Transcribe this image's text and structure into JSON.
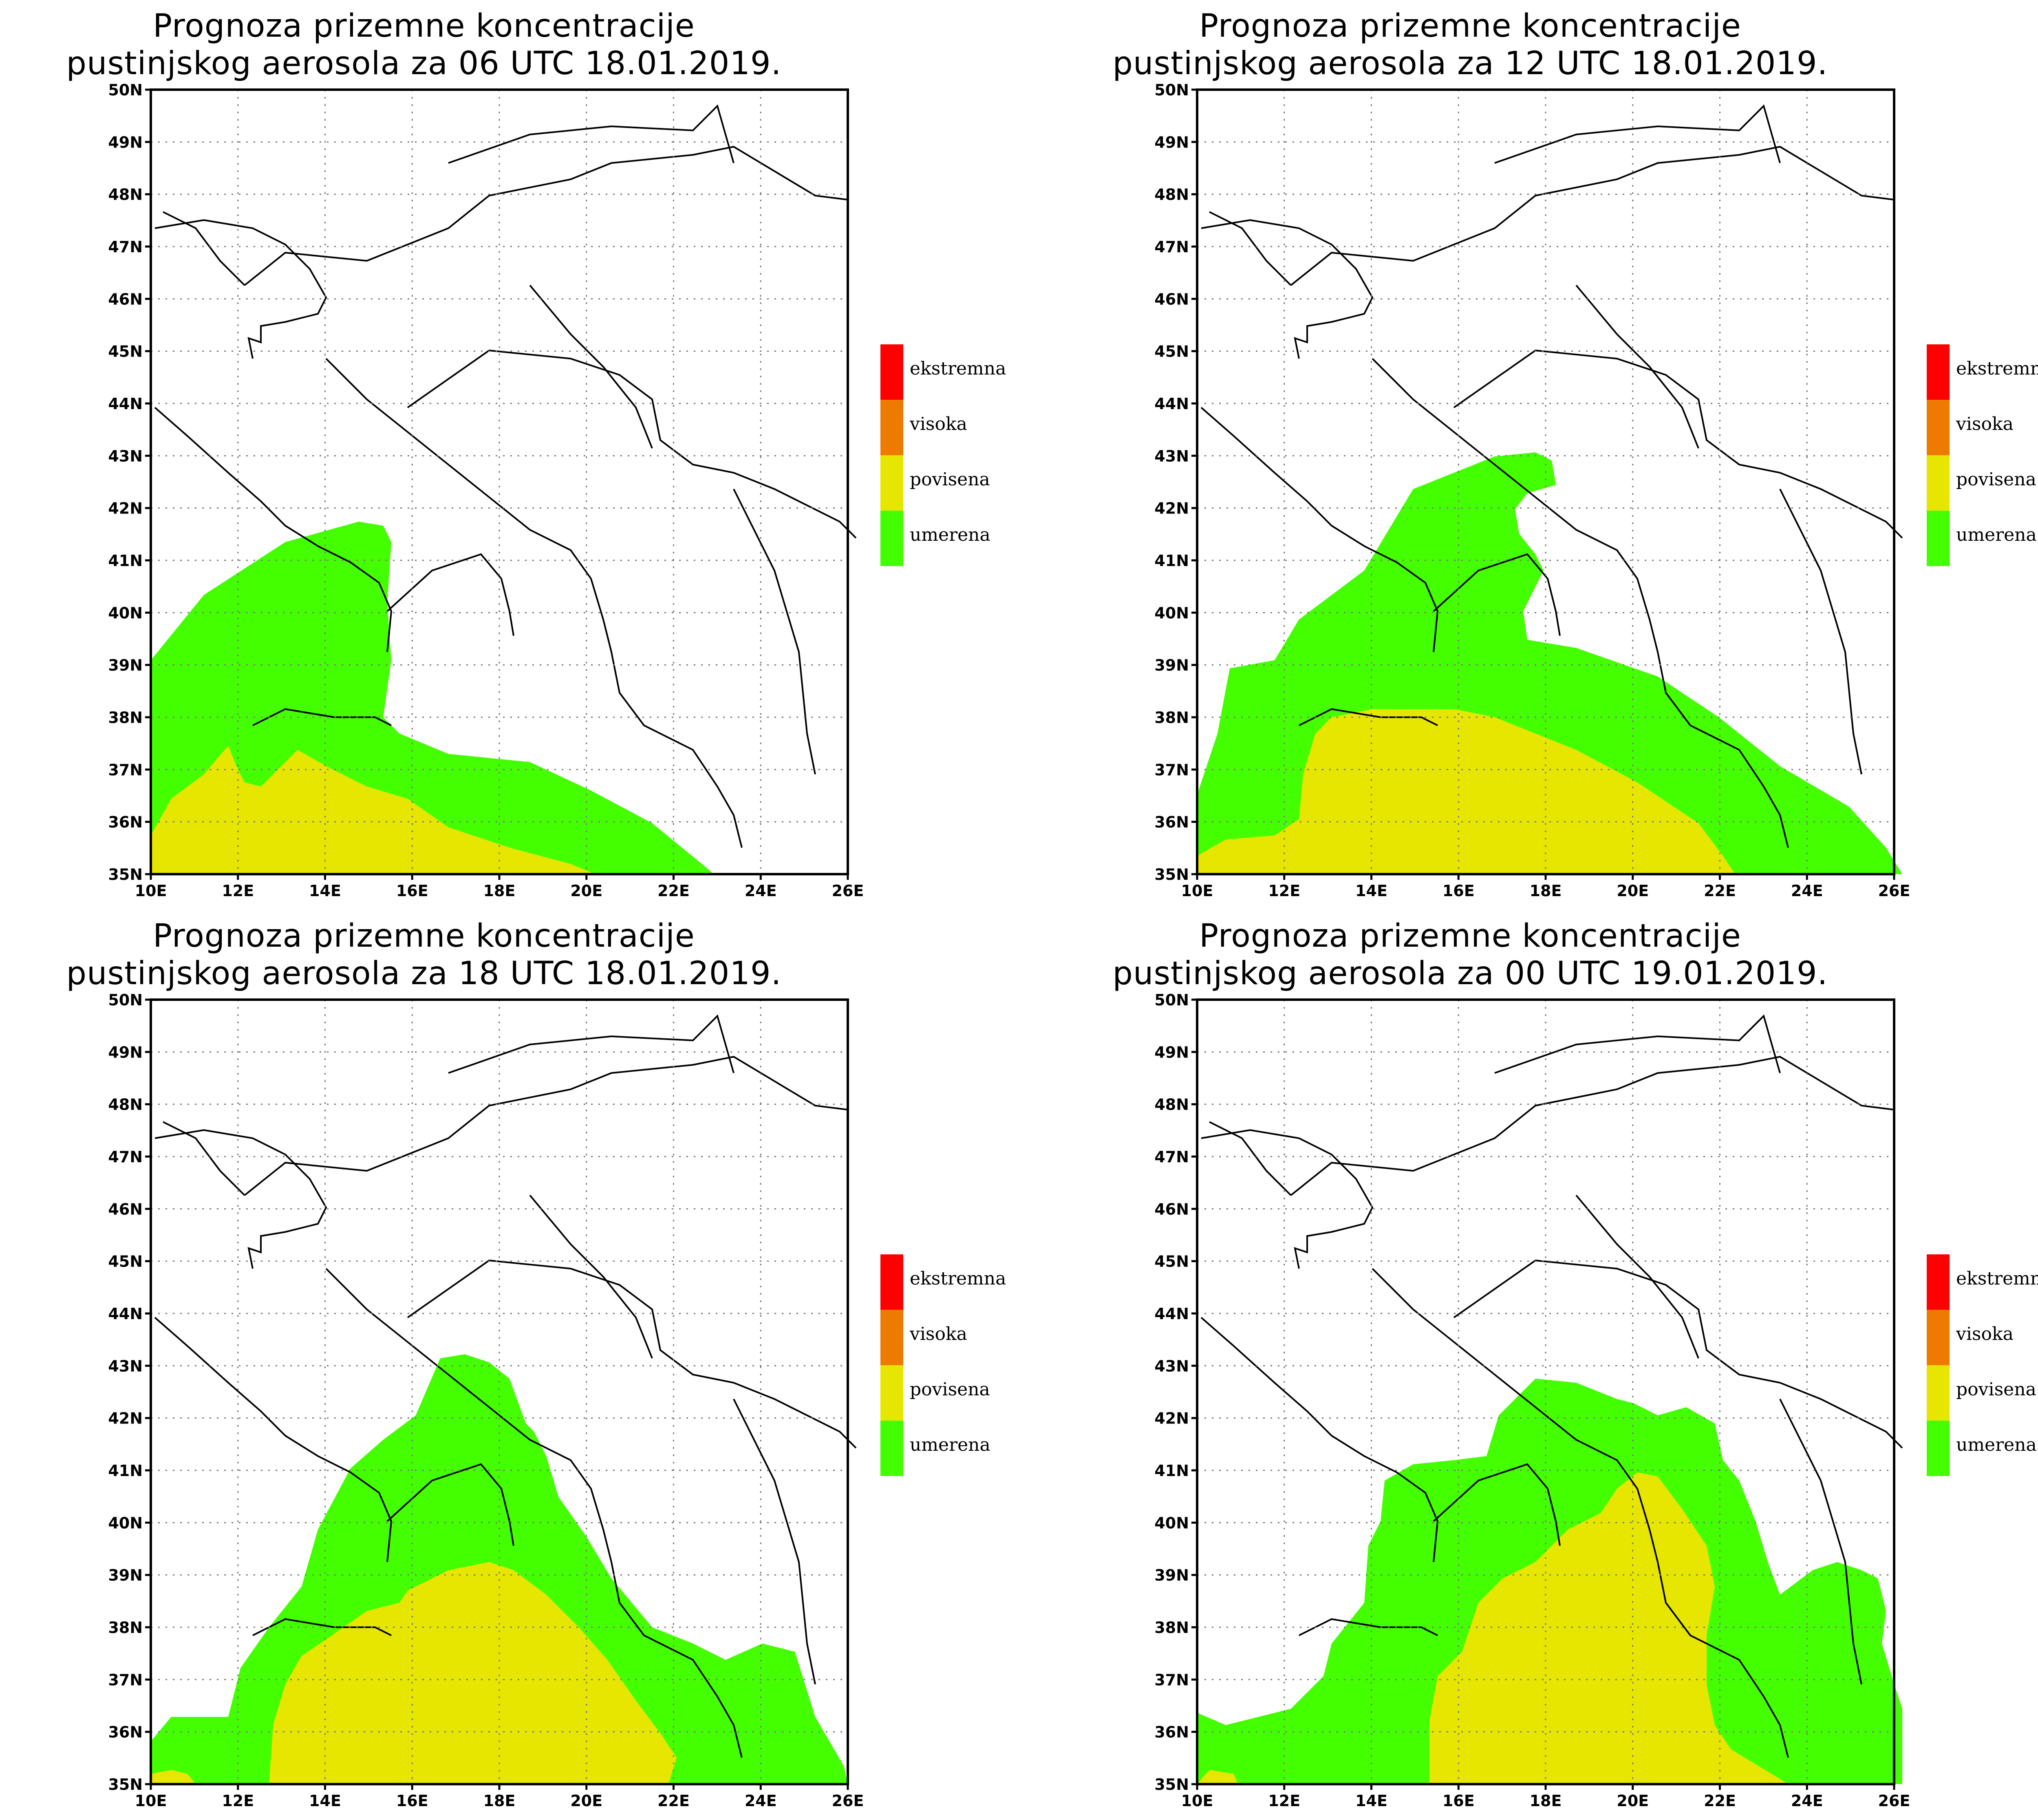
{
  "map": {
    "lat_range": [
      35,
      50
    ],
    "lon_range": [
      10,
      26
    ],
    "lat_ticks": [
      "50N",
      "49N",
      "48N",
      "47N",
      "46N",
      "45N",
      "44N",
      "43N",
      "42N",
      "41N",
      "40N",
      "39N",
      "38N",
      "37N",
      "36N",
      "35N"
    ],
    "lon_ticks": [
      "10E",
      "12E",
      "14E",
      "16E",
      "18E",
      "20E",
      "22E",
      "24E",
      "26E"
    ]
  },
  "legend": [
    {
      "label": "ekstremna",
      "color": "#ff0000"
    },
    {
      "label": "visoka",
      "color": "#ee7a00"
    },
    {
      "label": "povisena",
      "color": "#e6e600"
    },
    {
      "label": "umerena",
      "color": "#44ff00"
    }
  ],
  "panels": [
    {
      "title_line1": "Prognoza prizemne koncentracije",
      "title_line2": "pustinjskog aerosola za 06 UTC 18.01.2019."
    },
    {
      "title_line1": "Prognoza prizemne koncentracije",
      "title_line2": "pustinjskog aerosola za 12 UTC 18.01.2019."
    },
    {
      "title_line1": "Prognoza prizemne koncentracije",
      "title_line2": "pustinjskog aerosola za 18 UTC 18.01.2019."
    },
    {
      "title_line1": "Prognoza prizemne koncentracije",
      "title_line2": "pustinjskog aerosola za 00 UTC 19.01.2019."
    }
  ]
}
